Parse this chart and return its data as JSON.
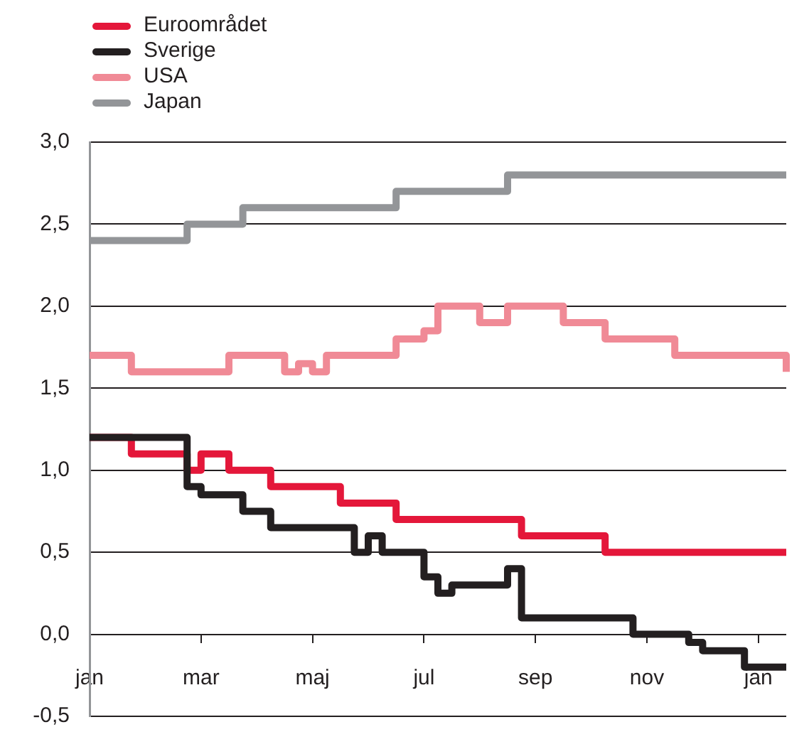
{
  "chart_data": {
    "type": "step",
    "legend": "top left",
    "grid": "y",
    "marker": "none",
    "categories": [
      "jan",
      null,
      null,
      null,
      null,
      null,
      null,
      null,
      "mar",
      null,
      null,
      null,
      null,
      null,
      null,
      null,
      "maj",
      null,
      null,
      null,
      null,
      null,
      null,
      null,
      "jul",
      null,
      null,
      null,
      null,
      null,
      null,
      null,
      "sep",
      null,
      null,
      null,
      null,
      null,
      null,
      null,
      "nov",
      null,
      null,
      null,
      null,
      null,
      null,
      null,
      "jan",
      null,
      null
    ],
    "ylim": [
      -0.5,
      3
    ],
    "yticks": [
      {
        "value": -0.5,
        "label": "-0,5"
      },
      {
        "value": 0,
        "label": "0,0"
      },
      {
        "value": 0.5,
        "label": "0,5"
      },
      {
        "value": 1,
        "label": "1,0"
      },
      {
        "value": 1.5,
        "label": "1,5"
      },
      {
        "value": 2,
        "label": "2,0"
      },
      {
        "value": 2.5,
        "label": "2,5"
      },
      {
        "value": 3,
        "label": "3,0"
      }
    ],
    "series": [
      {
        "name": "Euroområdet",
        "color": "#e4173a",
        "values": [
          1.2,
          1.2,
          1.2,
          1.1,
          1.1,
          1.1,
          1.1,
          1.0,
          1.1,
          1.1,
          1.0,
          1.0,
          1.0,
          0.9,
          0.9,
          0.9,
          0.9,
          0.9,
          0.8,
          0.8,
          0.8,
          0.8,
          0.7,
          0.7,
          0.7,
          0.7,
          0.7,
          0.7,
          0.7,
          0.7,
          0.7,
          0.6,
          0.6,
          0.6,
          0.6,
          0.6,
          0.6,
          0.5,
          0.5,
          0.5,
          0.5,
          0.5,
          0.5,
          0.5,
          0.5,
          0.5,
          0.5,
          0.5,
          0.5,
          0.5,
          0.5
        ]
      },
      {
        "name": "Sverige",
        "color": "#231f20",
        "values": [
          1.2,
          1.2,
          1.2,
          1.2,
          1.2,
          1.2,
          1.2,
          0.9,
          0.85,
          0.85,
          0.85,
          0.75,
          0.75,
          0.65,
          0.65,
          0.65,
          0.65,
          0.65,
          0.65,
          0.5,
          0.6,
          0.5,
          0.5,
          0.5,
          0.35,
          0.25,
          0.3,
          0.3,
          0.3,
          0.3,
          0.4,
          0.1,
          0.1,
          0.1,
          0.1,
          0.1,
          0.1,
          0.1,
          0.1,
          0.0,
          0.0,
          0.0,
          0.0,
          -0.05,
          -0.1,
          -0.1,
          -0.1,
          -0.2,
          -0.2,
          -0.2,
          -0.2
        ]
      },
      {
        "name": "USA",
        "color": "#f08a96",
        "values": [
          1.7,
          1.7,
          1.7,
          1.6,
          1.6,
          1.6,
          1.6,
          1.6,
          1.6,
          1.6,
          1.7,
          1.7,
          1.7,
          1.7,
          1.6,
          1.65,
          1.6,
          1.7,
          1.7,
          1.7,
          1.7,
          1.7,
          1.8,
          1.8,
          1.85,
          2.0,
          2.0,
          2.0,
          1.9,
          1.9,
          2.0,
          2.0,
          2.0,
          2.0,
          1.9,
          1.9,
          1.9,
          1.8,
          1.8,
          1.8,
          1.8,
          1.8,
          1.7,
          1.7,
          1.7,
          1.7,
          1.7,
          1.7,
          1.7,
          1.7,
          1.6
        ]
      },
      {
        "name": "Japan",
        "color": "#939598",
        "values": [
          2.4,
          2.4,
          2.4,
          2.4,
          2.4,
          2.4,
          2.4,
          2.5,
          2.5,
          2.5,
          2.5,
          2.6,
          2.6,
          2.6,
          2.6,
          2.6,
          2.6,
          2.6,
          2.6,
          2.6,
          2.6,
          2.6,
          2.7,
          2.7,
          2.7,
          2.7,
          2.7,
          2.7,
          2.7,
          2.7,
          2.8,
          2.8,
          2.8,
          2.8,
          2.8,
          2.8,
          2.8,
          2.8,
          2.8,
          2.8,
          2.8,
          2.8,
          2.8,
          2.8,
          2.8,
          2.8,
          2.8,
          2.8,
          2.8,
          2.8,
          2.8
        ]
      }
    ]
  }
}
